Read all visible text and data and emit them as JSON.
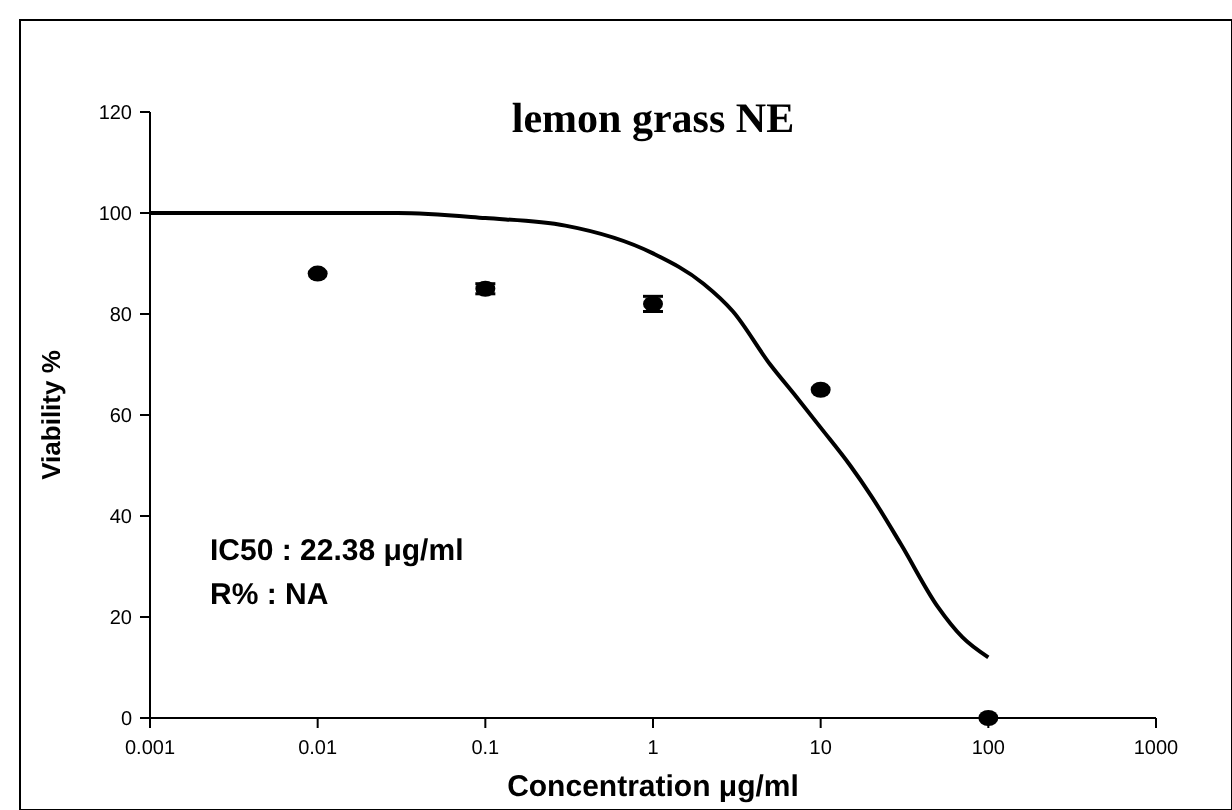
{
  "chart_data": {
    "type": "scatter",
    "title": "lemon grass NE",
    "xlabel": "Concentration μg/ml",
    "ylabel": "Viability %",
    "log": "x",
    "xlim": [
      0.001,
      1000
    ],
    "xticks": [
      0.001,
      0.01,
      0.1,
      1,
      10,
      100,
      1000
    ],
    "ylim": [
      0,
      120
    ],
    "yticks": [
      0,
      20,
      40,
      60,
      80,
      100,
      120
    ],
    "grid": false,
    "annotations": [
      "IC50 : 22.38 μg/ml",
      "R% : NA"
    ],
    "series": [
      {
        "marker": "circle",
        "color": "#000000",
        "x": [
          0.01,
          0.1,
          1,
          10,
          100
        ],
        "values": [
          88,
          85,
          82,
          65,
          0
        ],
        "errors": [
          null,
          1,
          1.5,
          null,
          null
        ]
      },
      {
        "type": "line",
        "marker": "none",
        "line_style": "solid",
        "color": "#000000",
        "x": [
          0.001,
          0.01,
          0.03,
          0.1,
          0.3,
          1,
          2,
          3,
          5,
          7,
          10,
          15,
          20,
          30,
          50,
          70,
          100
        ],
        "values": [
          100,
          100,
          100,
          99,
          97.5,
          92,
          86,
          80.5,
          70,
          64,
          57.5,
          50,
          44,
          34.5,
          22,
          16,
          12
        ]
      }
    ]
  }
}
